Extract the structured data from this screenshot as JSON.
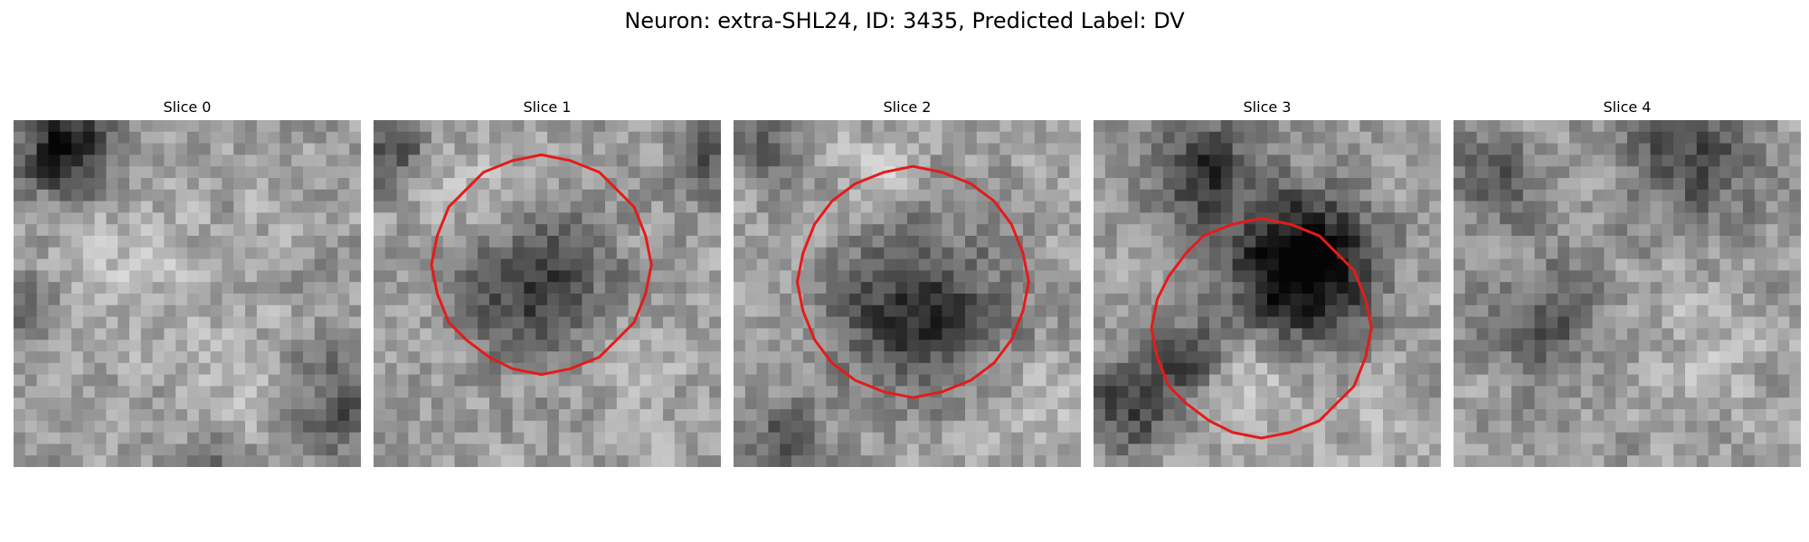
{
  "figure": {
    "title": "Neuron: extra-SHL24, ID: 3435, Predicted Label: DV",
    "neuron": "extra-SHL24",
    "id": 3435,
    "predicted_label": "DV"
  },
  "colors": {
    "contour": "#e41b1b",
    "background": "#ffffff",
    "text": "#000000"
  },
  "colormap": "gray",
  "grid_size": 30,
  "panels": [
    {
      "title": "Slice 0",
      "has_contour": false,
      "dark_blobs": [
        {
          "cx": 4,
          "cy": 2,
          "r": 4,
          "strength": 0.55
        },
        {
          "cx": 28,
          "cy": 24,
          "r": 5,
          "strength": 0.3
        },
        {
          "cx": 17,
          "cy": 29,
          "r": 3,
          "strength": 0.25
        },
        {
          "cx": 1,
          "cy": 16,
          "r": 3,
          "strength": 0.25
        }
      ],
      "light_blobs": [
        {
          "cx": 10,
          "cy": 12,
          "r": 6,
          "strength": 0.12
        },
        {
          "cx": 20,
          "cy": 24,
          "r": 5,
          "strength": 0.12
        }
      ],
      "seed": 11
    },
    {
      "title": "Slice 1",
      "has_contour": true,
      "contour_center": [
        14.5,
        12.5
      ],
      "contour_radius": 9.5,
      "dark_blobs": [
        {
          "cx": 13.5,
          "cy": 14,
          "r": 6,
          "strength": 0.42
        },
        {
          "cx": 1,
          "cy": 2,
          "r": 3,
          "strength": 0.3
        },
        {
          "cx": 28,
          "cy": 3,
          "r": 3,
          "strength": 0.25
        }
      ],
      "light_blobs": [
        {
          "cx": 9,
          "cy": 6,
          "r": 4,
          "strength": 0.15
        },
        {
          "cx": 22,
          "cy": 20,
          "r": 4,
          "strength": 0.12
        }
      ],
      "seed": 23
    },
    {
      "title": "Slice 2",
      "has_contour": true,
      "contour_center": [
        15.5,
        14
      ],
      "contour_radius": 10,
      "dark_blobs": [
        {
          "cx": 15.5,
          "cy": 16,
          "r": 7,
          "strength": 0.45
        },
        {
          "cx": 4,
          "cy": 27,
          "r": 3,
          "strength": 0.3
        },
        {
          "cx": 2,
          "cy": 2,
          "r": 3,
          "strength": 0.2
        }
      ],
      "light_blobs": [
        {
          "cx": 12,
          "cy": 4,
          "r": 4,
          "strength": 0.12
        },
        {
          "cx": 26,
          "cy": 24,
          "r": 4,
          "strength": 0.12
        }
      ],
      "seed": 37
    },
    {
      "title": "Slice 3",
      "has_contour": true,
      "contour_center": [
        14.5,
        18
      ],
      "contour_radius": 9.5,
      "dark_blobs": [
        {
          "cx": 17.5,
          "cy": 12,
          "r": 6,
          "strength": 0.75
        },
        {
          "cx": 9,
          "cy": 4,
          "r": 4,
          "strength": 0.45
        },
        {
          "cx": 3,
          "cy": 24,
          "r": 4,
          "strength": 0.4
        },
        {
          "cx": 8,
          "cy": 20,
          "r": 3,
          "strength": 0.35
        }
      ],
      "light_blobs": [
        {
          "cx": 13,
          "cy": 22,
          "r": 4,
          "strength": 0.18
        },
        {
          "cx": 24,
          "cy": 26,
          "r": 4,
          "strength": 0.12
        }
      ],
      "seed": 53
    },
    {
      "title": "Slice 4",
      "has_contour": false,
      "dark_blobs": [
        {
          "cx": 20,
          "cy": 2,
          "r": 6,
          "strength": 0.35
        },
        {
          "cx": 7,
          "cy": 17,
          "r": 5,
          "strength": 0.3
        },
        {
          "cx": 3,
          "cy": 5,
          "r": 4,
          "strength": 0.25
        }
      ],
      "light_blobs": [
        {
          "cx": 22,
          "cy": 20,
          "r": 5,
          "strength": 0.1
        }
      ],
      "seed": 71
    }
  ]
}
